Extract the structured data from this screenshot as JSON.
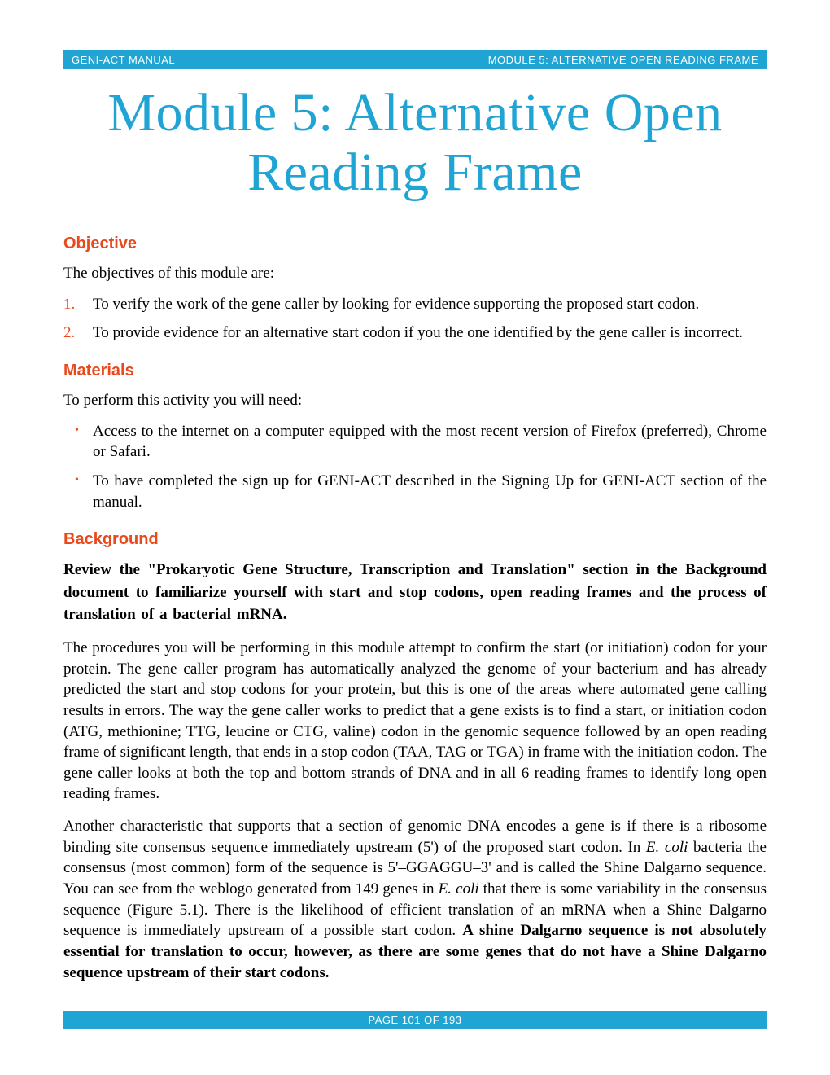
{
  "colors": {
    "accent_blue": "#1fa4d4",
    "accent_red": "#e8491d",
    "text": "#000000",
    "background": "#ffffff"
  },
  "typography": {
    "title_fontsize": 66,
    "heading_fontsize": 20,
    "body_fontsize": 19,
    "header_footer_fontsize": 13
  },
  "header": {
    "left": "GENI-ACT MANUAL",
    "right": "MODULE 5:  ALTERNATIVE OPEN READING FRAME"
  },
  "title": "Module 5:  Alternative Open Reading Frame",
  "sections": {
    "objective": {
      "heading": "Objective",
      "intro": "The objectives of this module are:",
      "items": [
        {
          "num": "1.",
          "text": "To verify the work of the gene caller by looking for evidence supporting the proposed start codon."
        },
        {
          "num": "2.",
          "text": "To provide evidence for an alternative start codon if you the one identified by the gene caller is incorrect."
        }
      ]
    },
    "materials": {
      "heading": "Materials",
      "intro": "To perform this activity you will need:",
      "items": [
        "Access to the internet on a computer equipped with the most recent version of Firefox (preferred), Chrome or Safari.",
        "To have completed the sign up for GENI-ACT described in the Signing Up for GENI-ACT section of the manual."
      ]
    },
    "background": {
      "heading": "Background",
      "bold_para": "Review the \"Prokaryotic Gene Structure, Transcription and Translation\" section in the Background document to familiarize yourself with start and stop codons, open reading frames and the process of translation of a bacterial mRNA.",
      "para1": "The procedures you will be performing in this module attempt to confirm the start (or initiation) codon for your protein.  The gene caller program has automatically analyzed the genome of your bacterium and has already predicted the start and stop codons for your protein, but this is one of the areas where automated gene calling results in errors.  The way the gene caller works to predict that a gene exists is to find a start, or initiation codon (ATG, methionine; TTG, leucine or CTG, valine) codon in the genomic sequence followed by an open reading frame of significant length, that ends in a stop codon (TAA, TAG or TGA) in frame with the initiation codon.  The gene caller looks at both the top and bottom strands of DNA and in all 6 reading frames to identify long open reading frames.",
      "para2_part1": "Another characteristic that supports that a section of genomic DNA encodes a gene is if there is a ribosome binding site consensus sequence immediately upstream (5') of the proposed start codon.  In ",
      "para2_italic1": "E. coli",
      "para2_part2": " bacteria the consensus (most common) form of the sequence is 5'–GGAGGU–3' and is called the Shine Dalgarno sequence.  You can see from the weblogo generated from 149 genes in ",
      "para2_italic2": "E. coli",
      "para2_part3": " that there is some variability in the consensus sequence (Figure 5.1).  There is the likelihood of efficient translation of an mRNA when a Shine Dalgarno sequence is immediately upstream of a possible start codon.  ",
      "para2_bold": "A shine Dalgarno sequence is not absolutely essential for translation to occur, however, as there are some genes that do not have a Shine Dalgarno sequence upstream of their start codons."
    }
  },
  "footer": {
    "text": "PAGE 101 OF 193"
  }
}
